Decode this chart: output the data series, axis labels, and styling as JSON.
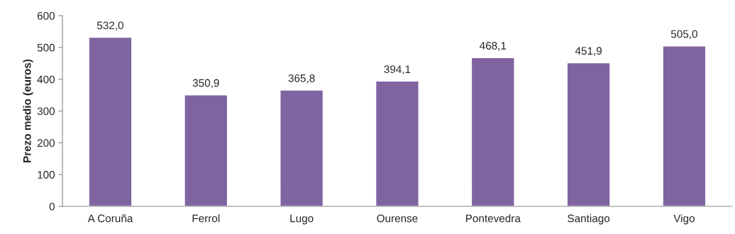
{
  "chart_data": {
    "type": "bar",
    "ylabel": "Prezo medio (euros)",
    "categories": [
      "A Coruña",
      "Ferrol",
      "Lugo",
      "Ourense",
      "Pontevedra",
      "Santiago",
      "Vigo"
    ],
    "values": [
      532.0,
      350.9,
      365.8,
      394.1,
      468.1,
      451.9,
      505.0
    ],
    "value_labels": [
      "532,0",
      "350,9",
      "365,8",
      "394,1",
      "468,1",
      "451,9",
      "505,0"
    ],
    "color": "#8064a2",
    "ylim": [
      0,
      600
    ],
    "yticks": [
      0,
      100,
      200,
      300,
      400,
      500,
      600
    ],
    "grid": false
  }
}
